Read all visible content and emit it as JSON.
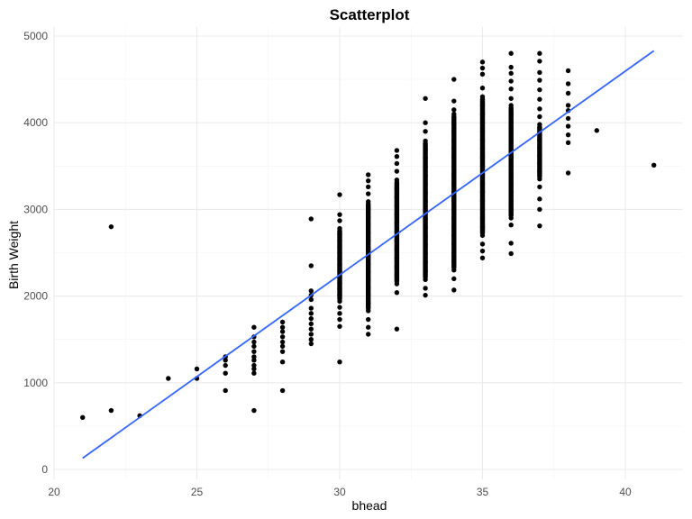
{
  "chart_data": {
    "type": "scatter",
    "title": "Scatterplot",
    "xlabel": "bhead",
    "ylabel": "Birth Weight",
    "xlim": [
      20,
      42
    ],
    "ylim": [
      0,
      5100
    ],
    "x_ticks": [
      20,
      25,
      30,
      35,
      40
    ],
    "y_ticks": [
      0,
      1000,
      2000,
      3000,
      4000,
      5000
    ],
    "grid": true,
    "legend": "none",
    "point_color": "#000000",
    "fit_color": "#3366ff",
    "fit_line": {
      "x": [
        21,
        41
      ],
      "y": [
        130,
        4830
      ]
    },
    "points": [
      [
        21,
        600
      ],
      [
        22,
        680
      ],
      [
        22,
        2800
      ],
      [
        23,
        620
      ],
      [
        24,
        1050
      ],
      [
        25,
        1050
      ],
      [
        25,
        1160
      ],
      [
        26,
        910
      ],
      [
        26,
        1110
      ],
      [
        26,
        1200
      ],
      [
        26,
        1260
      ],
      [
        26,
        1300
      ],
      [
        27,
        680
      ],
      [
        27,
        1110
      ],
      [
        27,
        1160
      ],
      [
        27,
        1200
      ],
      [
        27,
        1260
      ],
      [
        27,
        1300
      ],
      [
        27,
        1360
      ],
      [
        27,
        1420
      ],
      [
        27,
        1470
      ],
      [
        27,
        1530
      ],
      [
        27,
        1640
      ],
      [
        28,
        910
      ],
      [
        28,
        1240
      ],
      [
        28,
        1360
      ],
      [
        28,
        1420
      ],
      [
        28,
        1470
      ],
      [
        28,
        1530
      ],
      [
        28,
        1590
      ],
      [
        28,
        1640
      ],
      [
        28,
        1700
      ],
      [
        29,
        1450
      ],
      [
        29,
        1500
      ],
      [
        29,
        1560
      ],
      [
        29,
        1620
      ],
      [
        29,
        1680
      ],
      [
        29,
        1740
      ],
      [
        29,
        1800
      ],
      [
        29,
        1860
      ],
      [
        29,
        1960
      ],
      [
        29,
        2010
      ],
      [
        29,
        2060
      ],
      [
        29,
        2350
      ],
      [
        29,
        2890
      ],
      [
        30,
        1240
      ],
      [
        30,
        1650
      ],
      [
        30,
        1730
      ],
      [
        30,
        1800
      ],
      [
        30,
        1870
      ],
      [
        30,
        1940
      ],
      [
        30,
        2010
      ],
      [
        30,
        2080
      ],
      [
        30,
        2150
      ],
      [
        30,
        2220
      ],
      [
        30,
        2290
      ],
      [
        30,
        2360
      ],
      [
        30,
        2430
      ],
      [
        30,
        2500
      ],
      [
        30,
        2570
      ],
      [
        30,
        2640
      ],
      [
        30,
        2710
      ],
      [
        30,
        2780
      ],
      [
        30,
        2870
      ],
      [
        30,
        2940
      ],
      [
        30,
        3170
      ],
      [
        31,
        1560
      ],
      [
        31,
        1640
      ],
      [
        31,
        1730
      ],
      [
        31,
        1830
      ],
      [
        31,
        1920
      ],
      [
        31,
        2010
      ],
      [
        31,
        2100
      ],
      [
        31,
        2190
      ],
      [
        31,
        2280
      ],
      [
        31,
        2370
      ],
      [
        31,
        2460
      ],
      [
        31,
        2550
      ],
      [
        31,
        2640
      ],
      [
        31,
        2730
      ],
      [
        31,
        2820
      ],
      [
        31,
        2910
      ],
      [
        31,
        3000
      ],
      [
        31,
        3090
      ],
      [
        31,
        3180
      ],
      [
        31,
        3260
      ],
      [
        31,
        3330
      ],
      [
        31,
        3400
      ],
      [
        32,
        1620
      ],
      [
        32,
        2040
      ],
      [
        32,
        2140
      ],
      [
        32,
        2240
      ],
      [
        32,
        2340
      ],
      [
        32,
        2440
      ],
      [
        32,
        2540
      ],
      [
        32,
        2640
      ],
      [
        32,
        2740
      ],
      [
        32,
        2840
      ],
      [
        32,
        2940
      ],
      [
        32,
        3040
      ],
      [
        32,
        3140
      ],
      [
        32,
        3240
      ],
      [
        32,
        3340
      ],
      [
        32,
        3440
      ],
      [
        32,
        3530
      ],
      [
        32,
        3610
      ],
      [
        32,
        3680
      ],
      [
        33,
        2010
      ],
      [
        33,
        2090
      ],
      [
        33,
        2190
      ],
      [
        33,
        2290
      ],
      [
        33,
        2390
      ],
      [
        33,
        2490
      ],
      [
        33,
        2590
      ],
      [
        33,
        2690
      ],
      [
        33,
        2790
      ],
      [
        33,
        2890
      ],
      [
        33,
        2990
      ],
      [
        33,
        3090
      ],
      [
        33,
        3190
      ],
      [
        33,
        3290
      ],
      [
        33,
        3390
      ],
      [
        33,
        3490
      ],
      [
        33,
        3590
      ],
      [
        33,
        3690
      ],
      [
        33,
        3790
      ],
      [
        33,
        3900
      ],
      [
        33,
        4000
      ],
      [
        33,
        4280
      ],
      [
        34,
        2070
      ],
      [
        34,
        2200
      ],
      [
        34,
        2300
      ],
      [
        34,
        2400
      ],
      [
        34,
        2500
      ],
      [
        34,
        2600
      ],
      [
        34,
        2700
      ],
      [
        34,
        2800
      ],
      [
        34,
        2900
      ],
      [
        34,
        3000
      ],
      [
        34,
        3100
      ],
      [
        34,
        3200
      ],
      [
        34,
        3300
      ],
      [
        34,
        3400
      ],
      [
        34,
        3500
      ],
      [
        34,
        3600
      ],
      [
        34,
        3700
      ],
      [
        34,
        3800
      ],
      [
        34,
        3900
      ],
      [
        34,
        4000
      ],
      [
        34,
        4100
      ],
      [
        34,
        4150
      ],
      [
        34,
        4250
      ],
      [
        34,
        4500
      ],
      [
        35,
        2440
      ],
      [
        35,
        2520
      ],
      [
        35,
        2600
      ],
      [
        35,
        2700
      ],
      [
        35,
        2800
      ],
      [
        35,
        2900
      ],
      [
        35,
        3000
      ],
      [
        35,
        3100
      ],
      [
        35,
        3200
      ],
      [
        35,
        3300
      ],
      [
        35,
        3400
      ],
      [
        35,
        3500
      ],
      [
        35,
        3600
      ],
      [
        35,
        3700
      ],
      [
        35,
        3800
      ],
      [
        35,
        3900
      ],
      [
        35,
        4000
      ],
      [
        35,
        4100
      ],
      [
        35,
        4200
      ],
      [
        35,
        4300
      ],
      [
        35,
        4400
      ],
      [
        35,
        4560
      ],
      [
        35,
        4630
      ],
      [
        35,
        4700
      ],
      [
        36,
        2490
      ],
      [
        36,
        2610
      ],
      [
        36,
        2820
      ],
      [
        36,
        2900
      ],
      [
        36,
        3000
      ],
      [
        36,
        3100
      ],
      [
        36,
        3200
      ],
      [
        36,
        3300
      ],
      [
        36,
        3400
      ],
      [
        36,
        3500
      ],
      [
        36,
        3600
      ],
      [
        36,
        3700
      ],
      [
        36,
        3800
      ],
      [
        36,
        3900
      ],
      [
        36,
        4000
      ],
      [
        36,
        4100
      ],
      [
        36,
        4200
      ],
      [
        36,
        4280
      ],
      [
        36,
        4390
      ],
      [
        36,
        4480
      ],
      [
        36,
        4570
      ],
      [
        36,
        4640
      ],
      [
        36,
        4800
      ],
      [
        37,
        2810
      ],
      [
        37,
        3000
      ],
      [
        37,
        3120
      ],
      [
        37,
        3260
      ],
      [
        37,
        3350
      ],
      [
        37,
        3440
      ],
      [
        37,
        3530
      ],
      [
        37,
        3620
      ],
      [
        37,
        3710
      ],
      [
        37,
        3800
      ],
      [
        37,
        3890
      ],
      [
        37,
        3980
      ],
      [
        37,
        4070
      ],
      [
        37,
        4160
      ],
      [
        37,
        4270
      ],
      [
        37,
        4380
      ],
      [
        37,
        4490
      ],
      [
        37,
        4580
      ],
      [
        37,
        4710
      ],
      [
        37,
        4800
      ],
      [
        38,
        3420
      ],
      [
        38,
        3770
      ],
      [
        38,
        3860
      ],
      [
        38,
        3960
      ],
      [
        38,
        4050
      ],
      [
        38,
        4140
      ],
      [
        38,
        4200
      ],
      [
        38,
        4340
      ],
      [
        38,
        4450
      ],
      [
        38,
        4600
      ],
      [
        39,
        3910
      ],
      [
        41,
        3510
      ]
    ]
  }
}
